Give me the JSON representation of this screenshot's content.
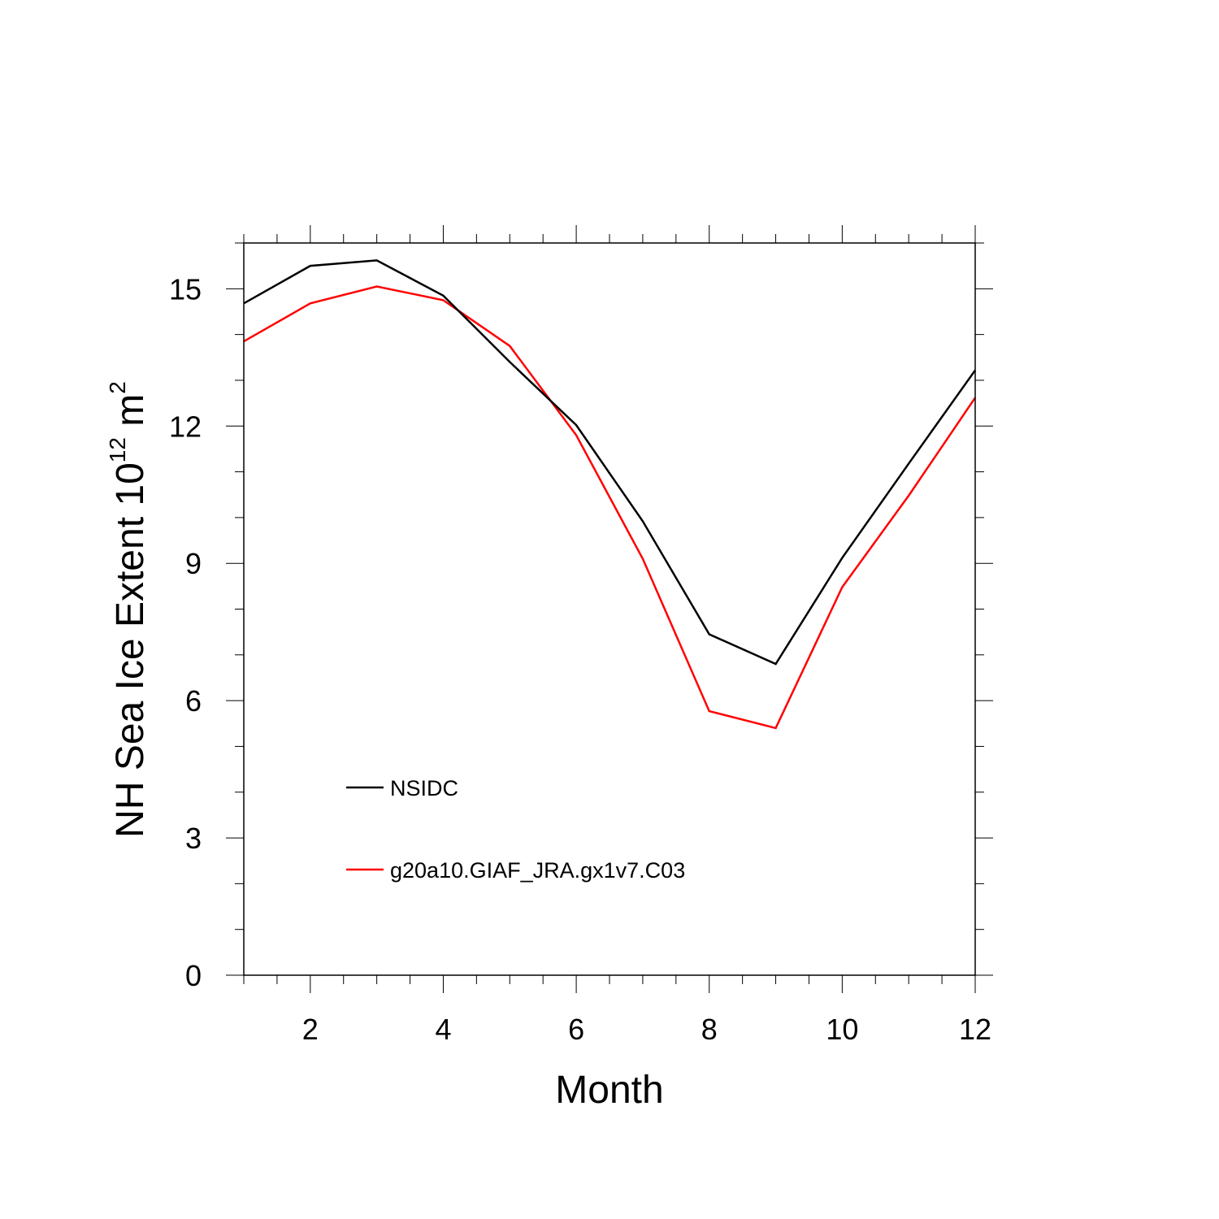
{
  "chart_data": {
    "type": "line",
    "title": "",
    "xlabel": "Month",
    "ylabel": "NH Sea Ice Extent 10",
    "ylabel_exponent": "12",
    "ylabel_unit": " m",
    "ylabel_unit_exponent": "2",
    "xlim": [
      1,
      12
    ],
    "ylim": [
      0,
      16
    ],
    "x_major_ticks": [
      2,
      4,
      6,
      8,
      10,
      12
    ],
    "x_tick_labels": [
      "2",
      "4",
      "6",
      "8",
      "10",
      "12"
    ],
    "y_major_ticks": [
      0,
      3,
      6,
      9,
      12,
      15
    ],
    "y_tick_labels": [
      "0",
      "3",
      "6",
      "9",
      "12",
      "15"
    ],
    "grid": false,
    "legend_position": "lower-left",
    "x": [
      1,
      2,
      3,
      4,
      5,
      6,
      7,
      8,
      9,
      10,
      11,
      12
    ],
    "series": [
      {
        "name": "NSIDC",
        "color": "#000000",
        "values": [
          14.68,
          15.5,
          15.62,
          14.85,
          13.4,
          12.02,
          9.92,
          7.45,
          6.8,
          9.12,
          11.18,
          13.22
        ]
      },
      {
        "name": "g20a10.GIAF_JRA.gx1v7.C03",
        "color": "#ff0000",
        "values": [
          13.85,
          14.68,
          15.05,
          14.75,
          13.75,
          11.8,
          9.1,
          5.77,
          5.4,
          8.48,
          10.48,
          12.62
        ]
      }
    ]
  }
}
